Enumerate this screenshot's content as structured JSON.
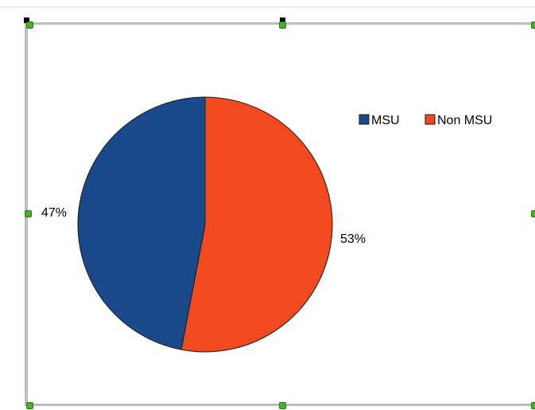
{
  "chart_data": {
    "type": "pie",
    "series": [
      {
        "label": "MSU",
        "value": 47,
        "display": "47%",
        "color": "#1b4a8a"
      },
      {
        "label": "Non MSU",
        "value": 53,
        "display": "53%",
        "color": "#f04a1e"
      }
    ],
    "legend_position": "right"
  }
}
